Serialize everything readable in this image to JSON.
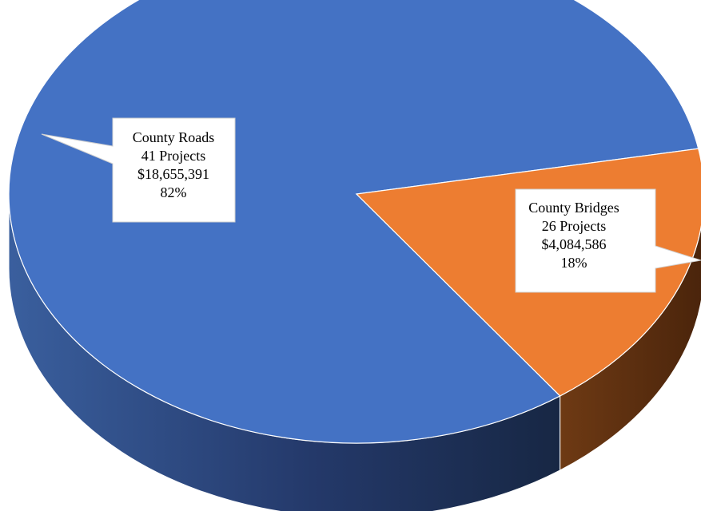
{
  "chart_data": {
    "type": "pie",
    "style": "3d",
    "title": "",
    "slices": [
      {
        "category": "County Roads",
        "projects_label": "41 Projects",
        "amount_label": "$18,655,391",
        "percent_label": "82%",
        "projects": 41,
        "amount": 18655391,
        "percent": 82,
        "color": "#4472C4"
      },
      {
        "category": "County Bridges",
        "projects_label": "26 Projects",
        "amount_label": "$4,084,586",
        "percent_label": "18%",
        "projects": 26,
        "amount": 4084586,
        "percent": 18,
        "color": "#ED7D31"
      }
    ],
    "legend": "none"
  }
}
